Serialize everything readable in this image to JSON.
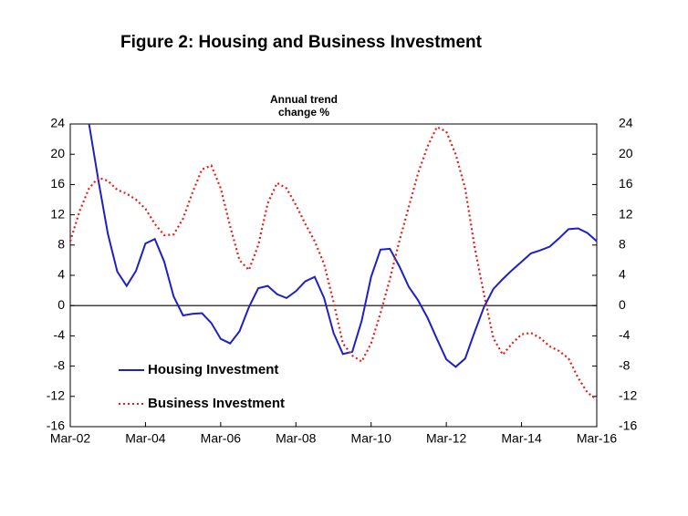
{
  "chart_data": {
    "type": "line",
    "title": "Figure 2: Housing and Business Investment",
    "ylabel": "Annual trend change %",
    "categories": [
      "Mar-02",
      null,
      null,
      null,
      null,
      null,
      null,
      null,
      "Mar-04",
      null,
      null,
      null,
      null,
      null,
      null,
      null,
      "Mar-06",
      null,
      null,
      null,
      null,
      null,
      null,
      null,
      "Mar-08",
      null,
      null,
      null,
      null,
      null,
      null,
      null,
      "Mar-10",
      null,
      null,
      null,
      null,
      null,
      null,
      null,
      "Mar-12",
      null,
      null,
      null,
      null,
      null,
      null,
      null,
      "Mar-14",
      null,
      null,
      null,
      null,
      null,
      null,
      null,
      "Mar-16"
    ],
    "series": [
      {
        "name": "Housing Investment",
        "color": "#1f1fc8",
        "style": "solid",
        "values": [
          null,
          null,
          24,
          16.5,
          9.5,
          4.5,
          2.6,
          4.6,
          8.2,
          8.8,
          5.8,
          1.2,
          -1.3,
          -1.1,
          -1.0,
          -2.3,
          -4.4,
          -5.0,
          -3.4,
          -0.2,
          2.3,
          2.6,
          1.5,
          1.0,
          1.9,
          3.2,
          3.8,
          1.0,
          -3.6,
          -6.4,
          -6.1,
          -2.0,
          3.8,
          7.4,
          7.5,
          5.2,
          2.5,
          0.7,
          -1.6,
          -4.4,
          -7.1,
          -8.1,
          -7.0,
          -3.5,
          -0.2,
          2.2,
          3.5,
          4.7,
          5.8,
          6.9,
          7.3,
          7.8,
          8.9,
          10.1,
          10.2,
          9.6,
          8.5
        ]
      },
      {
        "name": "Business Investment",
        "color": "#e0201b",
        "style": "dotted",
        "values": [
          8.5,
          12.5,
          15.5,
          16.9,
          16.5,
          15.3,
          14.8,
          14.0,
          12.8,
          10.8,
          9.3,
          9.4,
          11.5,
          14.9,
          18.0,
          18.5,
          15.5,
          10.5,
          6.0,
          4.7,
          8.0,
          13.5,
          16.2,
          15.5,
          13.3,
          10.8,
          8.5,
          5.5,
          0.5,
          -5.0,
          -6.6,
          -7.4,
          -5.0,
          -1.0,
          3.5,
          8.5,
          13.0,
          17.5,
          21.0,
          23.6,
          23.0,
          20.0,
          15.5,
          7.8,
          1.5,
          -4.3,
          -6.5,
          -5.0,
          -3.8,
          -3.6,
          -4.3,
          -5.4,
          -6.0,
          -7.0,
          -9.5,
          -11.5,
          -12.4
        ]
      }
    ],
    "ylim": [
      -16,
      24
    ],
    "yticks": [
      -16,
      -12,
      -8,
      -4,
      0,
      4,
      8,
      12,
      16,
      20,
      24
    ],
    "y2lim": [
      -16,
      24
    ],
    "y2ticks": [
      -16,
      -12,
      -8,
      -4,
      0,
      4,
      8,
      12,
      16,
      20,
      24
    ]
  }
}
